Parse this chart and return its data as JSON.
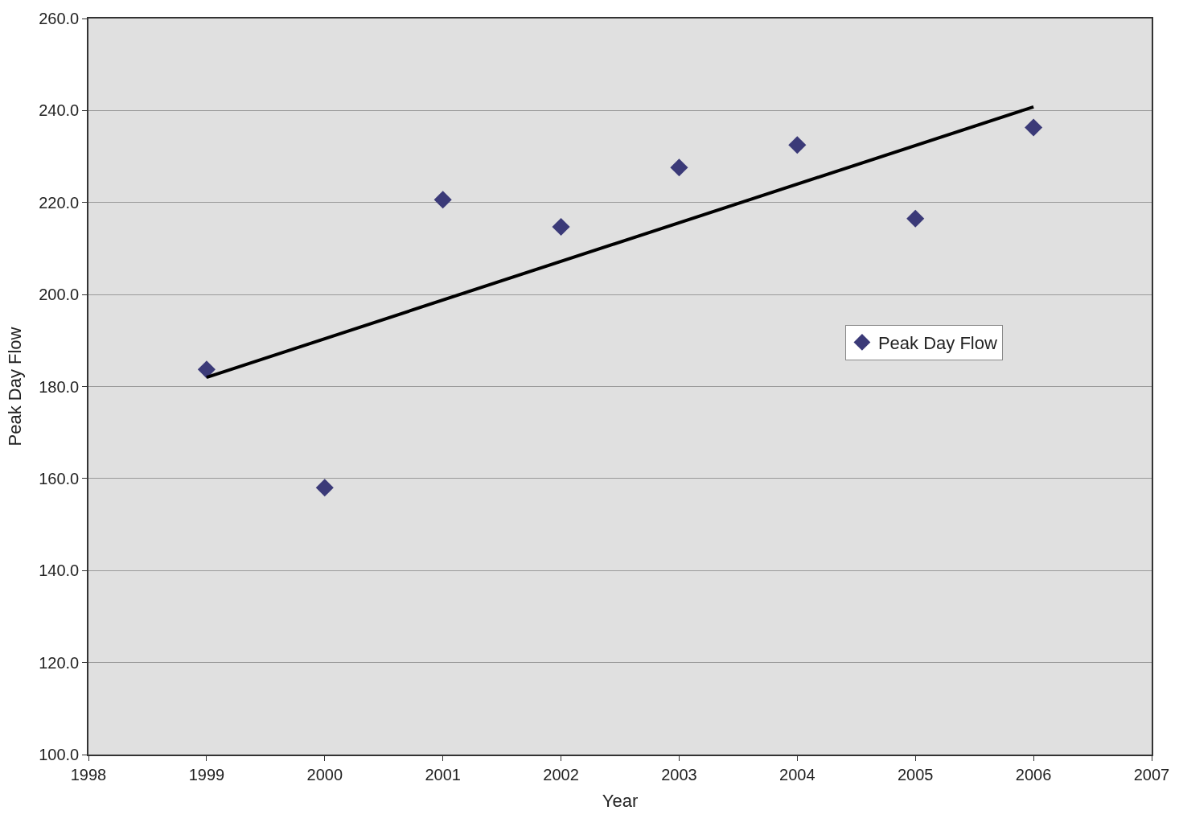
{
  "chart_data": {
    "type": "scatter",
    "xlabel": "Year",
    "ylabel": "Peak Day Flow",
    "x": [
      1999,
      2000,
      2001,
      2002,
      2003,
      2004,
      2005,
      2006
    ],
    "series": [
      {
        "name": "Peak Day Flow",
        "color": "#3b3a78",
        "values": [
          183.7,
          158.0,
          220.6,
          214.7,
          227.6,
          232.5,
          216.5,
          236.3
        ],
        "marker": "diamond"
      },
      {
        "type": "line",
        "color": "#000000",
        "x": [
          1999,
          2006
        ],
        "values": [
          182.0,
          240.8
        ],
        "marker": "none",
        "line_style": "solid"
      }
    ],
    "xlim": [
      1998,
      2007
    ],
    "xticks": [
      1998,
      1999,
      2000,
      2001,
      2002,
      2003,
      2004,
      2005,
      2006,
      2007
    ],
    "ylim": [
      100,
      260
    ],
    "yticks": [
      {
        "value": 100,
        "label": "100.0"
      },
      {
        "value": 120,
        "label": "120.0"
      },
      {
        "value": 140,
        "label": "140.0"
      },
      {
        "value": 160,
        "label": "160.0"
      },
      {
        "value": 180,
        "label": "180.0"
      },
      {
        "value": 200,
        "label": "200.0"
      },
      {
        "value": 220,
        "label": "220.0"
      },
      {
        "value": 240,
        "label": "240.0"
      },
      {
        "value": 260,
        "label": "260.0"
      }
    ],
    "grid": "y",
    "legend": "right"
  }
}
